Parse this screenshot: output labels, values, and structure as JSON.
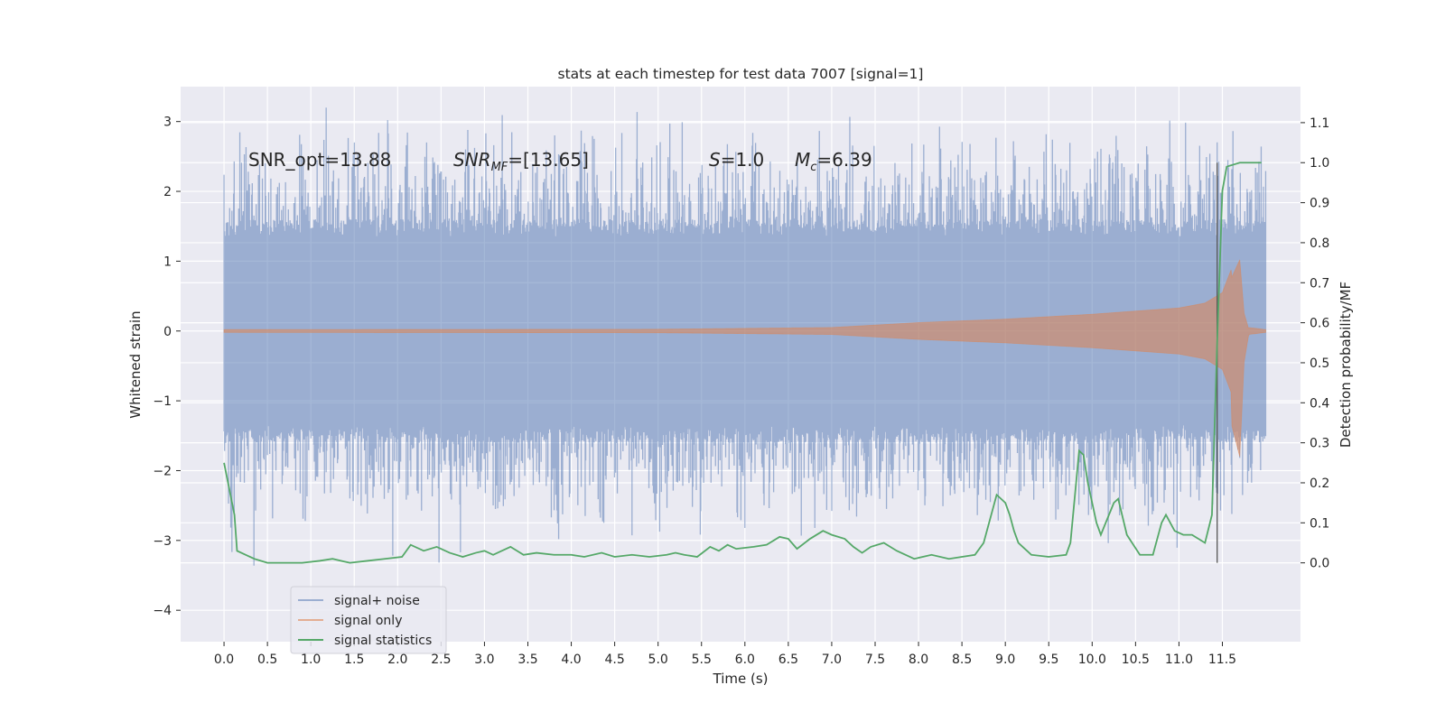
{
  "chart_data": {
    "type": "line",
    "title": "stats at each timestep for test data 7007 [signal=1]",
    "xlabel": "Time (s)",
    "ylabel": "Whitened strain",
    "y2label": "Detection probability/MF",
    "xlim": [
      -0.5,
      12.4
    ],
    "ylim": [
      -4.45,
      3.5
    ],
    "y2lim": [
      -0.197,
      1.19
    ],
    "x_ticks": [
      "0.0",
      "0.5",
      "1.0",
      "1.5",
      "2.0",
      "2.5",
      "3.0",
      "3.5",
      "4.0",
      "4.5",
      "5.0",
      "5.5",
      "6.0",
      "6.5",
      "7.0",
      "7.5",
      "8.0",
      "8.5",
      "9.0",
      "9.5",
      "10.0",
      "10.5",
      "11.0",
      "11.5"
    ],
    "y_ticks": [
      "3",
      "2",
      "1",
      "0",
      "−1",
      "−2",
      "−3",
      "−4"
    ],
    "y_tick_values": [
      3,
      2,
      1,
      0,
      -1,
      -2,
      -3,
      -4
    ],
    "y2_ticks": [
      "1.1",
      "1.0",
      "0.9",
      "0.8",
      "0.7",
      "0.6",
      "0.5",
      "0.4",
      "0.3",
      "0.2",
      "0.1",
      "0.0"
    ],
    "y2_tick_values": [
      1.1,
      1.0,
      0.9,
      0.8,
      0.7,
      0.6,
      0.5,
      0.4,
      0.3,
      0.2,
      0.1,
      0.0
    ],
    "grid": true,
    "legend_position": "lower-left",
    "annotations": {
      "snr_opt": "SNR_opt=13.88",
      "snr_mf_sym": "SNR",
      "snr_mf_sub": "MF",
      "snr_mf_val": "=[13.65]",
      "s_sym": "S",
      "s_val": "=1.0",
      "mc_sym": "M",
      "mc_sub": "c",
      "mc_val": "=6.39"
    },
    "vertical_marker_x": 11.44,
    "series": [
      {
        "name": "signal+ noise",
        "color": "#4c72b0",
        "time_range": [
          0.0,
          12.0
        ],
        "envelope_typical": [
          -1.6,
          1.6
        ],
        "envelope_extreme": [
          -4.0,
          3.2
        ]
      },
      {
        "name": "signal only",
        "color": "#dd8452",
        "time_range": [
          0.0,
          12.0
        ],
        "envelope_t": [
          0,
          5,
          7,
          8,
          9,
          10,
          11,
          11.3,
          11.5,
          11.7,
          11.75,
          11.8,
          12.0
        ],
        "envelope_a": [
          0.02,
          0.025,
          0.05,
          0.12,
          0.17,
          0.24,
          0.33,
          0.4,
          0.55,
          1.2,
          0.3,
          0.05,
          0.02
        ]
      },
      {
        "name": "signal statistics",
        "color": "#55a868",
        "x": [
          0.0,
          0.12,
          0.15,
          0.25,
          0.35,
          0.5,
          0.7,
          0.9,
          1.1,
          1.25,
          1.45,
          1.65,
          1.85,
          2.05,
          2.15,
          2.3,
          2.45,
          2.6,
          2.75,
          2.9,
          3.0,
          3.1,
          3.2,
          3.3,
          3.45,
          3.6,
          3.8,
          4.0,
          4.15,
          4.35,
          4.5,
          4.7,
          4.9,
          5.1,
          5.2,
          5.3,
          5.45,
          5.6,
          5.7,
          5.8,
          5.9,
          6.1,
          6.25,
          6.4,
          6.5,
          6.6,
          6.75,
          6.9,
          7.0,
          7.15,
          7.25,
          7.35,
          7.45,
          7.6,
          7.75,
          7.95,
          8.15,
          8.35,
          8.5,
          8.65,
          8.75,
          8.9,
          9.0,
          9.05,
          9.1,
          9.15,
          9.2,
          9.3,
          9.5,
          9.7,
          9.75,
          9.85,
          9.9,
          9.95,
          10.05,
          10.1,
          10.25,
          10.3,
          10.4,
          10.55,
          10.7,
          10.8,
          10.85,
          10.9,
          10.95,
          11.05,
          11.15,
          11.3,
          11.38,
          11.44,
          11.5,
          11.55,
          11.7,
          11.95
        ],
        "y": [
          0.25,
          0.12,
          0.03,
          0.02,
          0.01,
          0.0,
          0.0,
          0.0,
          0.005,
          0.01,
          0.0,
          0.005,
          0.01,
          0.015,
          0.045,
          0.03,
          0.04,
          0.025,
          0.015,
          0.025,
          0.03,
          0.02,
          0.03,
          0.04,
          0.02,
          0.025,
          0.02,
          0.02,
          0.015,
          0.025,
          0.015,
          0.02,
          0.015,
          0.02,
          0.025,
          0.02,
          0.015,
          0.04,
          0.03,
          0.045,
          0.035,
          0.04,
          0.045,
          0.065,
          0.06,
          0.035,
          0.06,
          0.08,
          0.07,
          0.06,
          0.04,
          0.025,
          0.04,
          0.05,
          0.03,
          0.01,
          0.02,
          0.01,
          0.015,
          0.02,
          0.05,
          0.17,
          0.15,
          0.12,
          0.08,
          0.05,
          0.04,
          0.02,
          0.015,
          0.02,
          0.05,
          0.28,
          0.27,
          0.2,
          0.1,
          0.07,
          0.15,
          0.16,
          0.07,
          0.02,
          0.02,
          0.1,
          0.12,
          0.1,
          0.08,
          0.07,
          0.07,
          0.05,
          0.12,
          0.55,
          0.93,
          0.99,
          1.0,
          1.0
        ]
      }
    ]
  }
}
